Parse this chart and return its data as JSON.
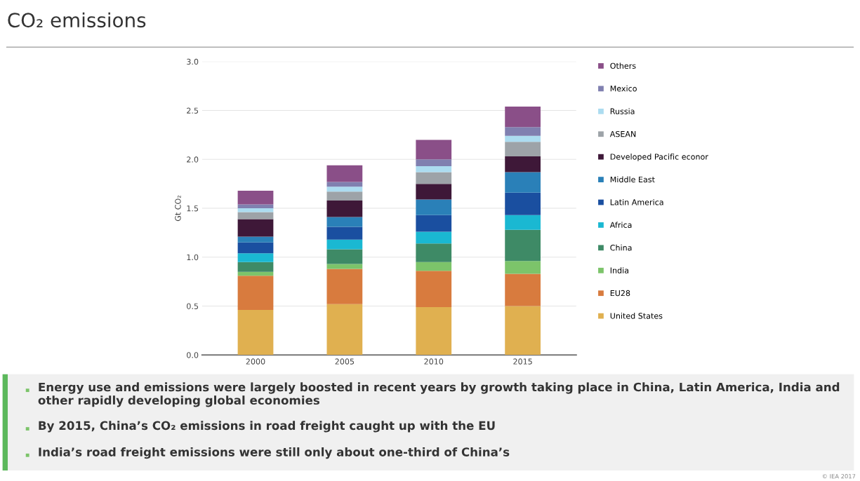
{
  "chart_data": {
    "type": "bar",
    "title": "CO₂ emissions",
    "ylabel": "Gt CO₂",
    "categories": [
      "2000",
      "2005",
      "2010",
      "2015"
    ],
    "stacked": true,
    "series": [
      {
        "name": "United States",
        "color": "#e0b050",
        "values": [
          0.46,
          0.52,
          0.49,
          0.5
        ]
      },
      {
        "name": "EU28",
        "color": "#d87b3e",
        "values": [
          0.35,
          0.36,
          0.37,
          0.33
        ]
      },
      {
        "name": "India",
        "color": "#7cc46a",
        "values": [
          0.04,
          0.05,
          0.09,
          0.13
        ]
      },
      {
        "name": "China",
        "color": "#3e8a66",
        "values": [
          0.1,
          0.15,
          0.19,
          0.32
        ]
      },
      {
        "name": "Africa",
        "color": "#1ab8d2",
        "values": [
          0.09,
          0.1,
          0.12,
          0.15
        ]
      },
      {
        "name": "Latin America",
        "color": "#1a4fa0",
        "values": [
          0.11,
          0.13,
          0.17,
          0.23
        ]
      },
      {
        "name": "Middle East",
        "color": "#2a80b8",
        "values": [
          0.06,
          0.1,
          0.16,
          0.21
        ]
      },
      {
        "name": "Developed Pacific econor",
        "color": "#3e1838",
        "values": [
          0.18,
          0.17,
          0.16,
          0.16
        ]
      },
      {
        "name": "ASEAN",
        "color": "#9da3a8",
        "values": [
          0.07,
          0.09,
          0.12,
          0.15
        ]
      },
      {
        "name": "Russia",
        "color": "#acdcf0",
        "values": [
          0.04,
          0.05,
          0.06,
          0.06
        ]
      },
      {
        "name": "Mexico",
        "color": "#8080b0",
        "values": [
          0.04,
          0.05,
          0.07,
          0.09
        ]
      },
      {
        "name": "Others",
        "color": "#8a4f88",
        "values": [
          0.14,
          0.17,
          0.2,
          0.21
        ]
      }
    ],
    "ylim": [
      0,
      3.0
    ],
    "yticks": [
      {
        "value": 0,
        "label": "0.0"
      },
      {
        "value": 0.5,
        "label": "0.5"
      },
      {
        "value": 1.0,
        "label": "1.0"
      },
      {
        "value": 1.5,
        "label": "1.5"
      },
      {
        "value": 2.0,
        "label": "2.0"
      },
      {
        "value": 2.5,
        "label": "2.5"
      },
      {
        "value": 3.0,
        "label": "3.0"
      }
    ],
    "grid": "y",
    "legend": "right",
    "annotations": [
      "Energy use and emissions were largely boosted in recent years by growth taking place in China, Latin America, India and other rapidly developing global economies",
      "By 2015, China’s CO₂ emissions in road freight caught up with the EU",
      "India’s road freight emissions were still only about one-third of China’s",
      "© IEA 2017"
    ]
  }
}
